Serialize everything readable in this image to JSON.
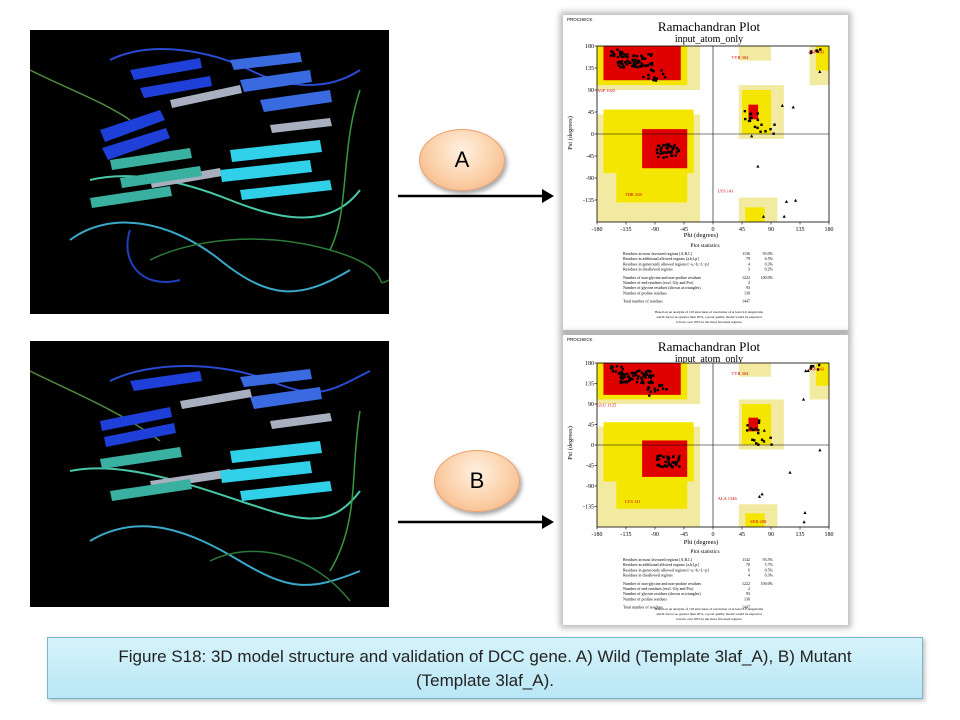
{
  "panels": [
    {
      "id": "A",
      "label": "A",
      "plot": {
        "header": "PROCHECK",
        "title": "Ramachandran Plot",
        "subtitle": "input_atom_only",
        "xlabel": "Phi (degrees)",
        "ylabel": "Psi (degrees)",
        "xticks": [
          "-180",
          "-135",
          "-90",
          "-45",
          "0",
          "45",
          "90",
          "135",
          "180"
        ],
        "yticks": [
          "180",
          "135",
          "90",
          "45",
          "0",
          "-45",
          "-90",
          "-135"
        ],
        "residue_labels": [
          "ASP 443",
          "TYR 304",
          "ASP 1025",
          "THR 208",
          "LYS 141"
        ],
        "stats_title": "Plot statistics",
        "stats": [
          {
            "label": "Residues in most favoured regions [A,B,L]",
            "count": "1136",
            "pct": "93.0%"
          },
          {
            "label": "Residues in additional allowed regions [a,b,l,p]",
            "count": "79",
            "pct": "6.5%"
          },
          {
            "label": "Residues in generously allowed regions [~a,~b,~l,~p]",
            "count": "4",
            "pct": "0.3%"
          },
          {
            "label": "Residues in disallowed regions",
            "count": "3",
            "pct": "0.2%"
          },
          {
            "label": "Number of non-glycine and non-proline residues",
            "count": "1222",
            "pct": "100.0%"
          },
          {
            "label": "Number of end-residues (excl. Gly and Pro)",
            "count": "2",
            "pct": ""
          },
          {
            "label": "Number of glycine residues (shown as triangles)",
            "count": "93",
            "pct": ""
          },
          {
            "label": "Number of proline residues",
            "count": "130",
            "pct": ""
          },
          {
            "label": "Total number of residues",
            "count": "1447",
            "pct": ""
          }
        ],
        "footnote1": "Based on an analysis of 118 structures of resolution of at least 2.0 Angstroms",
        "footnote2": "and R-factor no greater than 20%, a good quality model would be expected",
        "footnote3": "to have over 90% in the most favoured regions."
      }
    },
    {
      "id": "B",
      "label": "B",
      "plot": {
        "header": "PROCHECK",
        "title": "Ramachandran Plot",
        "subtitle": "input_atom_only",
        "xlabel": "Phi (degrees)",
        "ylabel": "Psi (degrees)",
        "xticks": [
          "-180",
          "-135",
          "-90",
          "-45",
          "0",
          "45",
          "90",
          "135",
          "180"
        ],
        "yticks": [
          "180",
          "135",
          "90",
          "45",
          "0",
          "-45",
          "-90",
          "-135"
        ],
        "residue_labels": [
          "ASP 443",
          "TYR 304",
          "GLU 1125",
          "LYS 141",
          "ALA 1346",
          "SER 208"
        ],
        "stats_title": "Plot statistics",
        "stats": [
          {
            "label": "Residues in most favoured regions [A,B,L]",
            "count": "1142",
            "pct": "93.5%"
          },
          {
            "label": "Residues in additional allowed regions [a,b,l,p]",
            "count": "70",
            "pct": "5.7%"
          },
          {
            "label": "Residues in generously allowed regions [~a,~b,~l,~p]",
            "count": "6",
            "pct": "0.5%"
          },
          {
            "label": "Residues in disallowed regions",
            "count": "4",
            "pct": "0.3%"
          },
          {
            "label": "Number of non-glycine and non-proline residues",
            "count": "1222",
            "pct": "100.0%"
          },
          {
            "label": "Number of end-residues (excl. Gly and Pro)",
            "count": "2",
            "pct": ""
          },
          {
            "label": "Number of glycine residues (shown as triangles)",
            "count": "93",
            "pct": ""
          },
          {
            "label": "Number of proline residues",
            "count": "130",
            "pct": ""
          },
          {
            "label": "Total number of residues",
            "count": "1447",
            "pct": ""
          }
        ],
        "footnote1": "Based on an analysis of 118 structures of resolution of at least 2.0 Angstroms",
        "footnote2": "and R-factor no greater than 20%, a good quality model would be expected",
        "footnote3": "to have over 90% in the most favoured regions."
      }
    }
  ],
  "caption": {
    "line1": "Figure S18: 3D model structure and validation of DCC gene. A) Wild (Template 3laf_A), B) Mutant",
    "line2": "(Template 3laf_A)."
  },
  "colors": {
    "most_favoured": "#e00000",
    "additional": "#f5e600",
    "generous": "#f2eaa0",
    "disallowed": "#ffffff",
    "caption_bg": "#c7ecf7",
    "bubble": "#f8c8a0"
  }
}
